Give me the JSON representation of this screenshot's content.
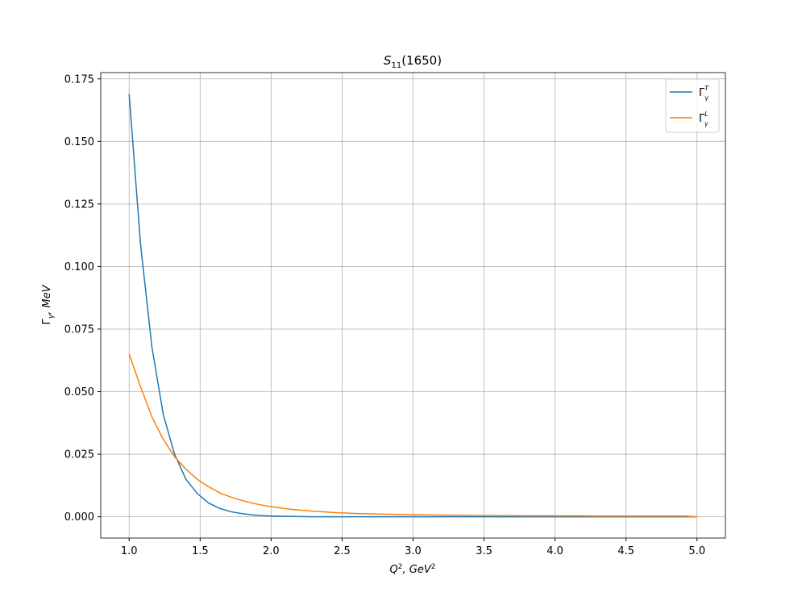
{
  "chart_data": {
    "type": "line",
    "title": [
      "S",
      "11",
      "(1650)"
    ],
    "xlabel": [
      "Q",
      "2",
      ", GeV",
      "2"
    ],
    "ylabel": [
      "Γ",
      "γ",
      ", MeV"
    ],
    "x": [
      1,
      1.08,
      1.16,
      1.24,
      1.32,
      1.4,
      1.48,
      1.56,
      1.64,
      1.72,
      1.8,
      1.88,
      1.96,
      2.04,
      2.12,
      2.2,
      2.28,
      2.36,
      2.44,
      2.52,
      2.6,
      2.68,
      2.76,
      2.84,
      2.92,
      3,
      3.08,
      3.16,
      3.24,
      3.32,
      3.4,
      3.48,
      3.56,
      3.64,
      3.72,
      3.8,
      3.88,
      3.96,
      4.04,
      4.12,
      4.2,
      4.28,
      4.36,
      4.44,
      4.52,
      4.6,
      4.68,
      4.76,
      4.84,
      4.92,
      5
    ],
    "series": [
      {
        "name": [
          "Γ",
          "γ",
          "T"
        ],
        "color": "#1f77b4",
        "values": [
          0.169,
          0.109,
          0.068,
          0.041,
          0.025,
          0.015,
          0.0093,
          0.0055,
          0.0033,
          0.002,
          0.0012,
          0.0007,
          0.0004,
          0.00025,
          0.00015,
          0.0001,
          0,
          0,
          0,
          0,
          0,
          0,
          0,
          0,
          0,
          0,
          0,
          0,
          0,
          0,
          0,
          0,
          0,
          0,
          0,
          0,
          0,
          0,
          0,
          0,
          0,
          0,
          0,
          0,
          0,
          0,
          0,
          0,
          0,
          0,
          0
        ]
      },
      {
        "name": [
          "Γ",
          "γ",
          "L"
        ],
        "color": "#ff7f0e",
        "values": [
          0.065,
          0.052,
          0.04,
          0.031,
          0.024,
          0.019,
          0.015,
          0.012,
          0.0095,
          0.0078,
          0.0064,
          0.0053,
          0.0044,
          0.0037,
          0.0031,
          0.0027,
          0.0023,
          0.002,
          0.0017,
          0.0015,
          0.0013,
          0.0012,
          0.0011,
          0.001,
          0.0009,
          0.0008,
          0.00075,
          0.0007,
          0.00065,
          0.0006,
          0.00055,
          0.0005,
          0.0005,
          0.00045,
          0.00045,
          0.0004,
          0.0004,
          0.0004,
          0.00035,
          0.00035,
          0.00035,
          0.0003,
          0.0003,
          0.0003,
          0.0003,
          0.0003,
          0.0003,
          0.0003,
          0.0003,
          0.0003,
          0
        ]
      }
    ],
    "xlim": [
      0.8,
      5.2
    ],
    "ylim": [
      -0.0085,
      0.1775
    ],
    "xticks": [
      {
        "value": 1,
        "label": "1.0"
      },
      {
        "value": 1.5,
        "label": "1.5"
      },
      {
        "value": 2,
        "label": "2.0"
      },
      {
        "value": 2.5,
        "label": "2.5"
      },
      {
        "value": 3,
        "label": "3.0"
      },
      {
        "value": 3.5,
        "label": "3.5"
      },
      {
        "value": 4,
        "label": "4.0"
      },
      {
        "value": 4.5,
        "label": "4.5"
      },
      {
        "value": 5,
        "label": "5.0"
      }
    ],
    "yticks": [
      {
        "value": 0,
        "label": "0.000"
      },
      {
        "value": 0.025,
        "label": "0.025"
      },
      {
        "value": 0.05,
        "label": "0.050"
      },
      {
        "value": 0.075,
        "label": "0.075"
      },
      {
        "value": 0.1,
        "label": "0.100"
      },
      {
        "value": 0.125,
        "label": "0.125"
      },
      {
        "value": 0.15,
        "label": "0.150"
      },
      {
        "value": 0.175,
        "label": "0.175"
      }
    ],
    "grid": true,
    "legend": "upper right"
  }
}
